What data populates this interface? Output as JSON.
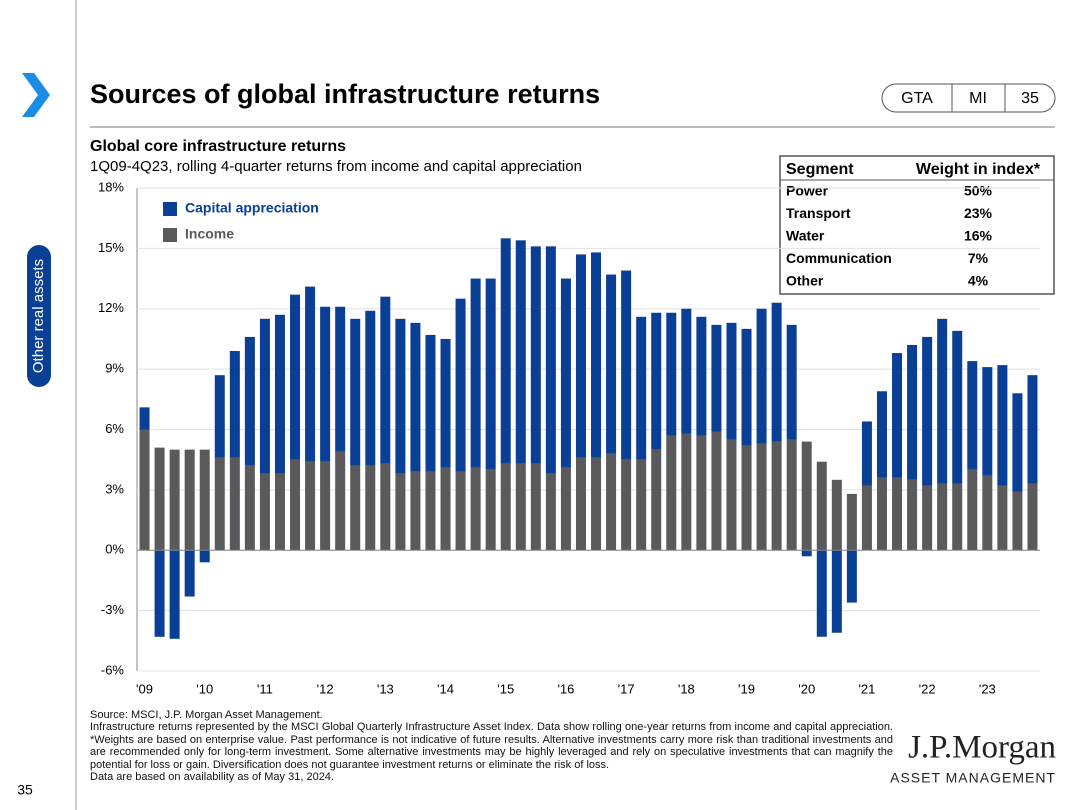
{
  "header": {
    "title": "Sources of global infrastructure returns",
    "badges": [
      "GTA",
      "MI",
      "35"
    ]
  },
  "side_tab": "Other real assets",
  "page_number": "35",
  "chart_data": {
    "type": "stacked_bar",
    "title": "Global core infrastructure returns",
    "subtitle": "1Q09-4Q23, rolling 4-quarter returns from income and capital appreciation",
    "categories": [
      "'09",
      null,
      null,
      null,
      "'10",
      null,
      null,
      null,
      "'11",
      null,
      null,
      null,
      "'12",
      null,
      null,
      null,
      "'13",
      null,
      null,
      null,
      "'14",
      null,
      null,
      null,
      "'15",
      null,
      null,
      null,
      "'16",
      null,
      null,
      null,
      "'17",
      null,
      null,
      null,
      "'18",
      null,
      null,
      null,
      "'19",
      null,
      null,
      null,
      "'20",
      null,
      null,
      null,
      "'21",
      null,
      null,
      null,
      "'22",
      null,
      null,
      null,
      "'23",
      null,
      null,
      null
    ],
    "series": [
      {
        "name": "Income",
        "color": "#5a5a5c",
        "values": [
          6.0,
          5.1,
          5.0,
          5.0,
          5.0,
          4.6,
          4.6,
          4.2,
          3.8,
          3.8,
          4.5,
          4.4,
          4.4,
          4.9,
          4.2,
          4.2,
          4.3,
          3.8,
          3.9,
          3.9,
          4.1,
          3.9,
          4.1,
          4.0,
          4.3,
          4.3,
          4.3,
          3.8,
          4.1,
          4.6,
          4.6,
          4.8,
          4.5,
          4.5,
          5.0,
          5.7,
          5.8,
          5.7,
          5.9,
          5.5,
          5.2,
          5.3,
          5.4,
          5.5,
          5.4,
          4.4,
          3.5,
          2.8,
          3.2,
          3.6,
          3.6,
          3.5,
          3.2,
          3.3,
          3.3,
          4.0,
          3.7,
          3.2,
          2.9,
          3.3
        ]
      },
      {
        "name": "Capital appreciation",
        "color": "#0a3f96",
        "values": [
          1.1,
          -4.3,
          -4.4,
          -2.3,
          -0.6,
          4.1,
          5.3,
          6.4,
          7.7,
          7.9,
          8.2,
          8.7,
          7.7,
          7.2,
          7.3,
          7.7,
          8.3,
          7.7,
          7.4,
          6.8,
          6.4,
          8.6,
          9.4,
          9.5,
          11.2,
          11.1,
          10.8,
          11.3,
          9.4,
          10.1,
          10.2,
          8.9,
          9.4,
          7.1,
          6.8,
          6.1,
          6.2,
          5.9,
          5.3,
          5.8,
          5.8,
          6.7,
          6.9,
          5.7,
          -0.3,
          -4.3,
          -4.1,
          -2.6,
          3.2,
          4.3,
          6.2,
          6.7,
          7.4,
          8.2,
          7.6,
          5.4,
          5.4,
          6.0,
          4.9,
          5.4
        ]
      }
    ],
    "ylim": [
      -6,
      18
    ],
    "yticks": [
      {
        "value": -6,
        "label": "-6%"
      },
      {
        "value": -3,
        "label": "-3%"
      },
      {
        "value": 0,
        "label": "0%"
      },
      {
        "value": 3,
        "label": "3%"
      },
      {
        "value": 6,
        "label": "6%"
      },
      {
        "value": 9,
        "label": "9%"
      },
      {
        "value": 12,
        "label": "12%"
      },
      {
        "value": 15,
        "label": "15%"
      },
      {
        "value": 18,
        "label": "18%"
      }
    ],
    "grid": true,
    "legend": "top-left"
  },
  "weights_table": {
    "columns": [
      "Segment",
      "Weight in index*"
    ],
    "rows": [
      [
        "Power",
        "50%"
      ],
      [
        "Transport",
        "23%"
      ],
      [
        "Water",
        "16%"
      ],
      [
        "Communication",
        "7%"
      ],
      [
        "Other",
        "4%"
      ]
    ]
  },
  "footnotes": {
    "source": "Source: MSCI, J.P. Morgan Asset Management.",
    "body": "Infrastructure returns represented by the MSCI Global Quarterly Infrastructure Asset Index. Data show rolling one-year returns from income and capital appreciation. *Weights are based on enterprise value. Past performance is not indicative of future results. Alternative investments carry more risk than traditional investments and are recommended only for long-term investment. Some alternative investments may be highly leveraged and rely on speculative investments that can magnify the potential for loss or gain. Diversification does not guarantee investment returns or eliminate the risk of loss.",
    "availability": "Data are based on availability as of May 31, 2024."
  },
  "logo": {
    "name": "J.P.Morgan",
    "subtitle": "ASSET MANAGEMENT"
  }
}
